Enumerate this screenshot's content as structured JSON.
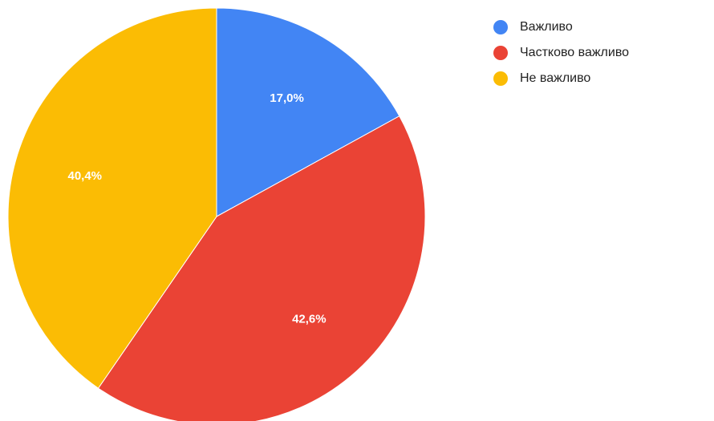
{
  "chart_data": {
    "type": "pie",
    "slices": [
      {
        "label": "Важливо",
        "value": 17.0,
        "display": "17,0%",
        "color": "#4285f4"
      },
      {
        "label": "Частково важливо",
        "value": 42.6,
        "display": "42,6%",
        "color": "#ea4335"
      },
      {
        "label": "Не важливо",
        "value": 40.4,
        "display": "40,4%",
        "color": "#fbbc04"
      }
    ],
    "start_angle": "12 o'clock",
    "direction": "clockwise",
    "legend_position": "top-right"
  }
}
